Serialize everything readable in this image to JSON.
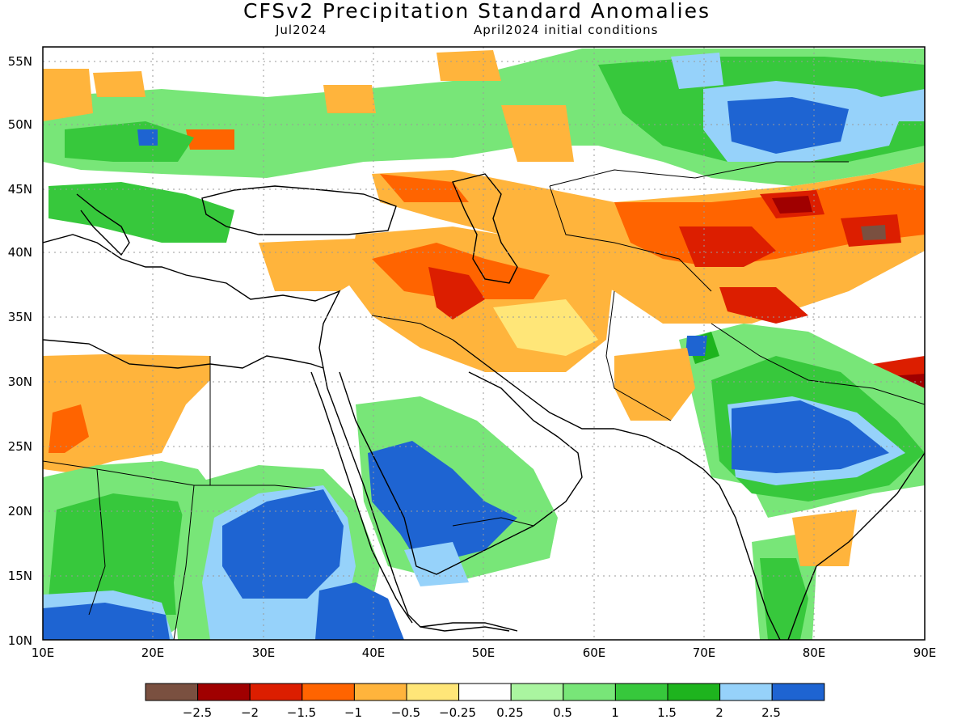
{
  "header": {
    "title": "CFSv2 Precipitation Standard Anomalies",
    "valid_month": "Jul2024",
    "init": "April2024 initial conditions"
  },
  "axes": {
    "lat_ticks": [
      "10N",
      "15N",
      "20N",
      "25N",
      "30N",
      "35N",
      "40N",
      "45N",
      "50N",
      "55N"
    ],
    "lon_ticks": [
      "10E",
      "20E",
      "30E",
      "40E",
      "50E",
      "60E",
      "70E",
      "80E",
      "90E"
    ],
    "lon_range": [
      10,
      90
    ],
    "lat_range": [
      10,
      56
    ],
    "grid": "dotted"
  },
  "legend": {
    "labels": [
      "−2.5",
      "−2",
      "−1.5",
      "−1",
      "−0.5",
      "−0.25",
      "0.25",
      "0.5",
      "1",
      "1.5",
      "2",
      "2.5"
    ],
    "colors": [
      "#7a5040",
      "#a00000",
      "#dc1e00",
      "#ff6400",
      "#ffb43c",
      "#ffe678",
      "#ffffff",
      "#aaf5a0",
      "#78e678",
      "#37c83c",
      "#1eb41e",
      "#96d2fa",
      "#1e64d2"
    ]
  },
  "colors": {
    "ocean": "#ffffff",
    "coast": "#000000"
  }
}
